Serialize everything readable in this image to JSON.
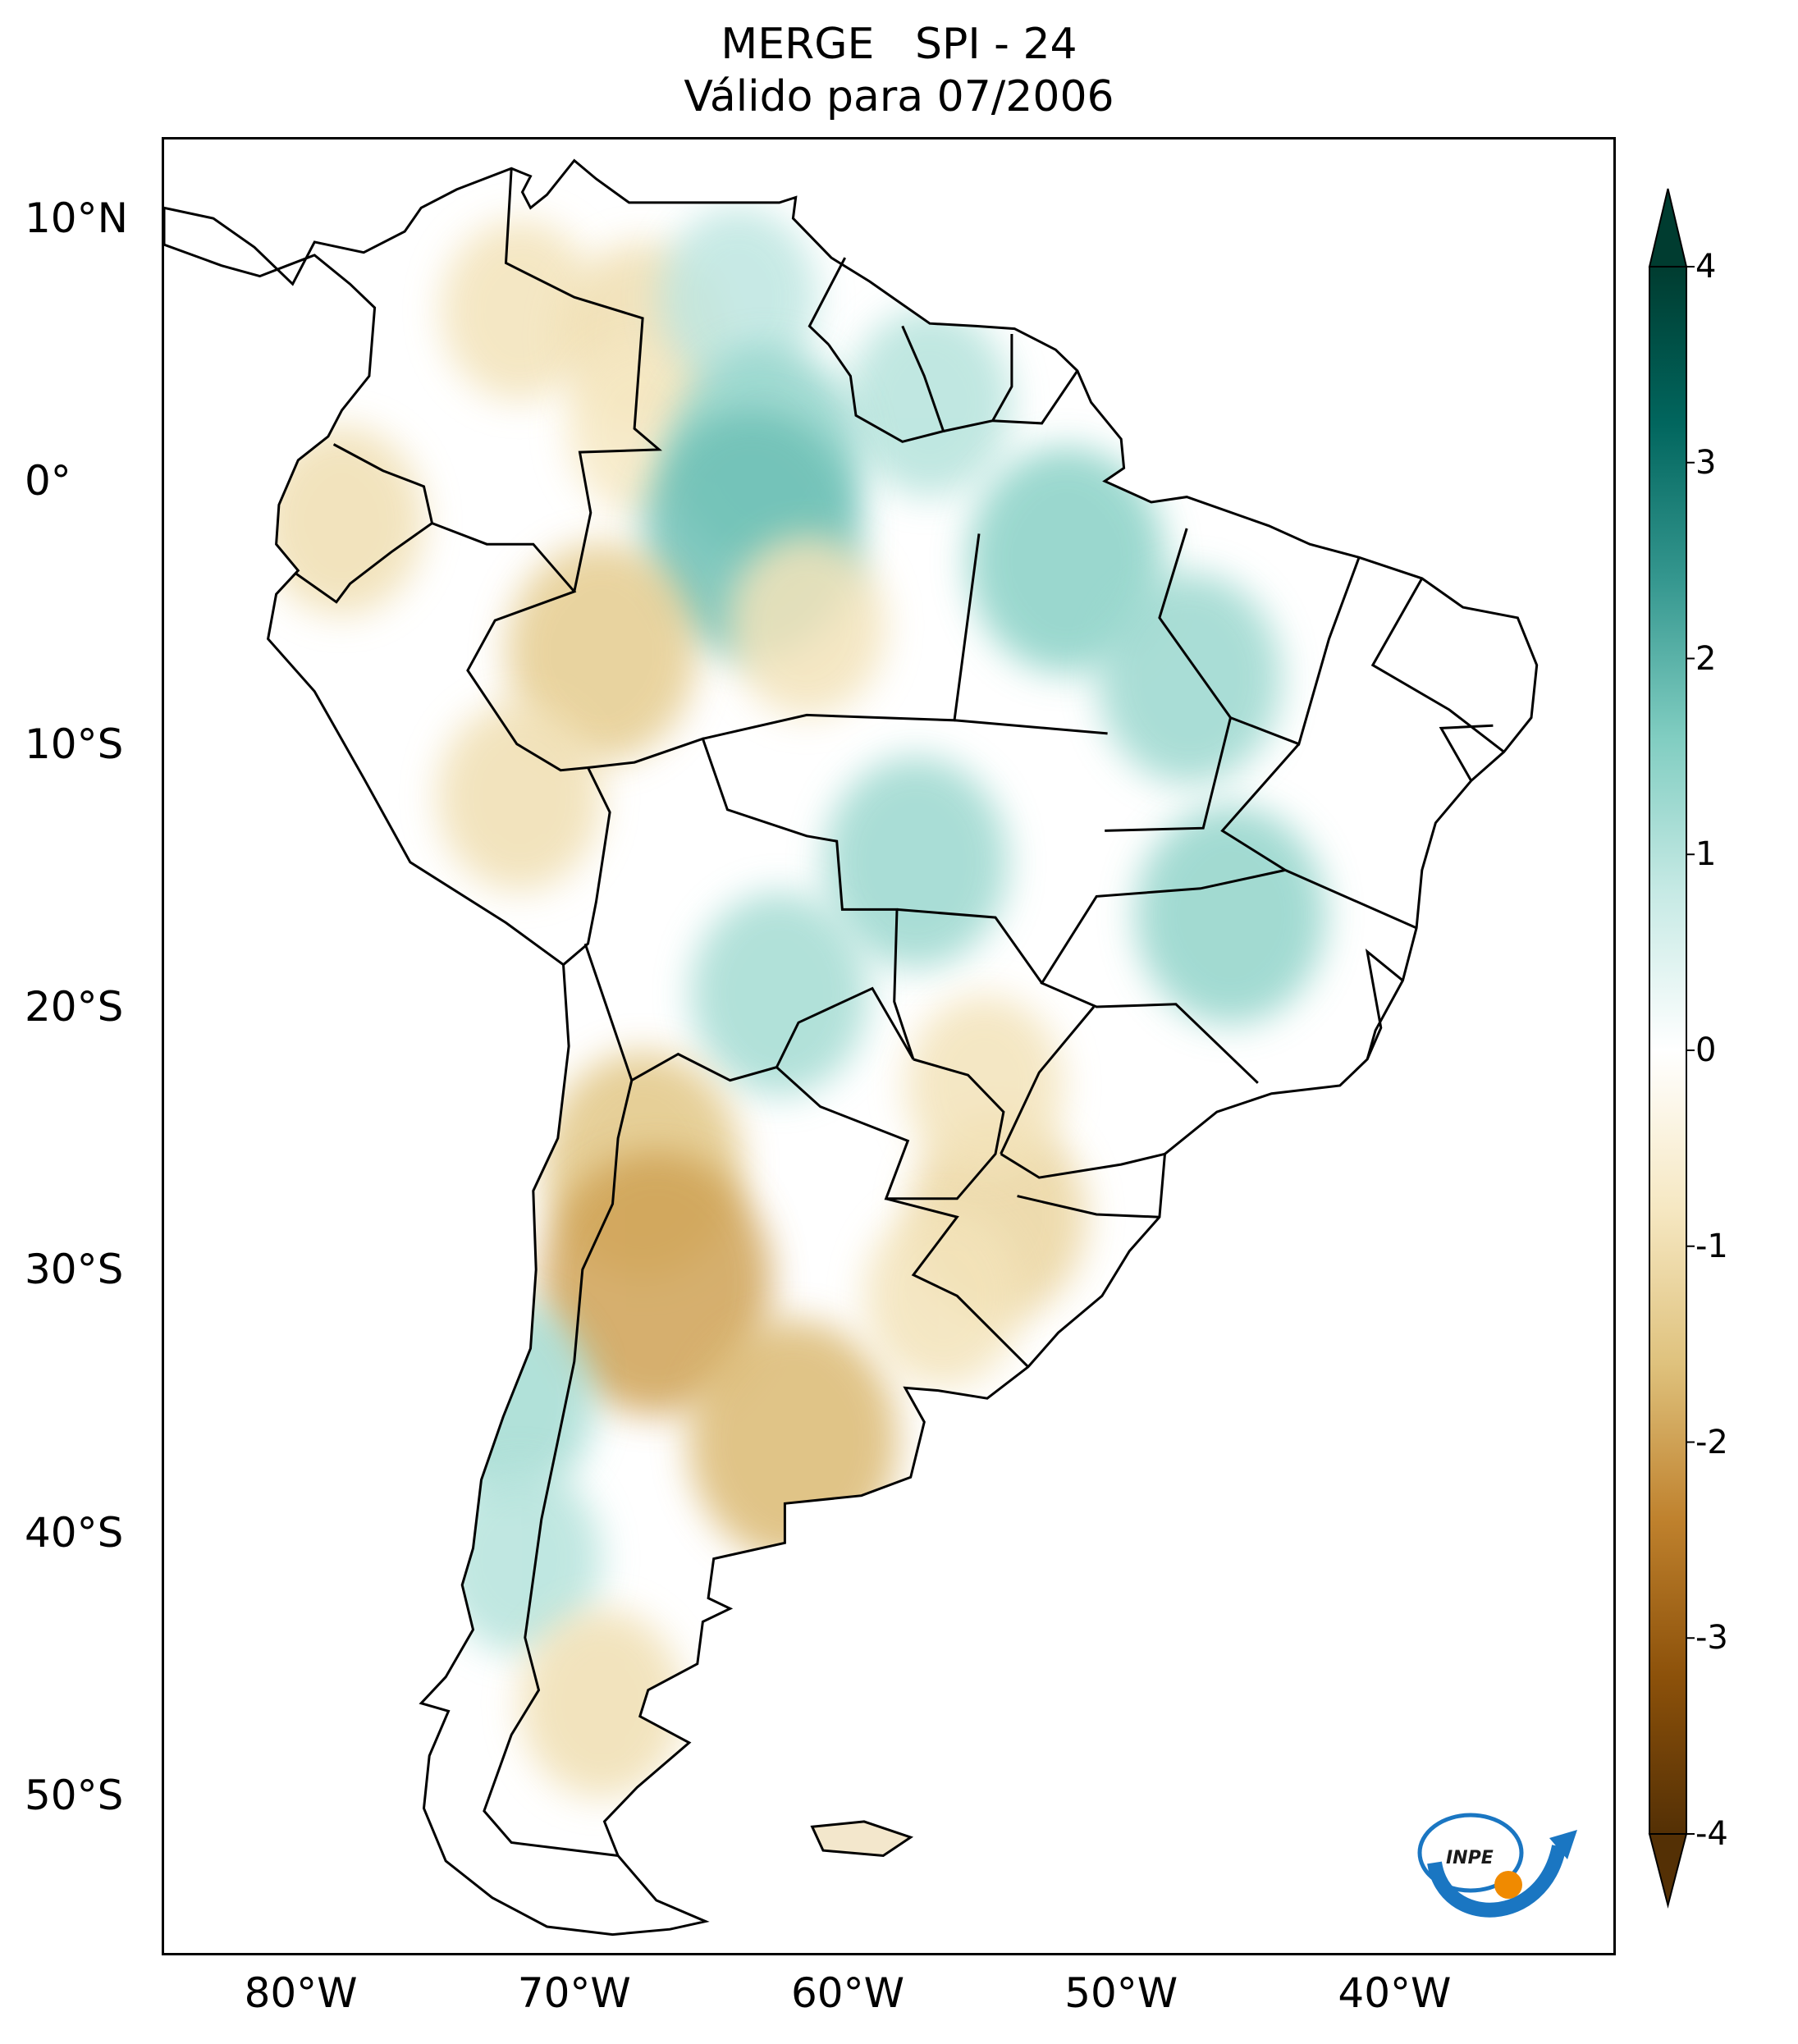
{
  "title": {
    "line1": "MERGE   SPI - 24",
    "line2": "Válido para 07/2006"
  },
  "map": {
    "extent": {
      "lon_min": -85,
      "lon_max": -32,
      "lat_min": -56,
      "lat_max": 13
    },
    "lat_ticks": [
      {
        "value": 10,
        "label": "10°N"
      },
      {
        "value": 0,
        "label": "0°"
      },
      {
        "value": -10,
        "label": "10°S"
      },
      {
        "value": -20,
        "label": "20°S"
      },
      {
        "value": -30,
        "label": "30°S"
      },
      {
        "value": -40,
        "label": "40°S"
      },
      {
        "value": -50,
        "label": "50°S"
      }
    ],
    "lon_ticks": [
      {
        "value": -80,
        "label": "80°W"
      },
      {
        "value": -70,
        "label": "70°W"
      },
      {
        "value": -60,
        "label": "60°W"
      },
      {
        "value": -50,
        "label": "50°W"
      },
      {
        "value": -40,
        "label": "40°W"
      }
    ],
    "spi_anomalies": [
      {
        "lat": 6.5,
        "lon": -72.0,
        "spi": -0.9
      },
      {
        "lat": 5.5,
        "lon": -67.5,
        "spi": -1.0
      },
      {
        "lat": 2.0,
        "lon": -67.5,
        "spi": -0.8
      },
      {
        "lat": 7.0,
        "lon": -64.0,
        "spi": 0.9
      },
      {
        "lat": 3.0,
        "lon": -57.0,
        "spi": 1.0
      },
      {
        "lat": 1.0,
        "lon": -63.0,
        "spi": 1.4
      },
      {
        "lat": -2.0,
        "lon": -63.5,
        "spi": 1.8
      },
      {
        "lat": -3.0,
        "lon": -52.0,
        "spi": 1.5
      },
      {
        "lat": -1.5,
        "lon": -78.5,
        "spi": -1.0
      },
      {
        "lat": -6.5,
        "lon": -69.0,
        "spi": -1.4
      },
      {
        "lat": -5.5,
        "lon": -61.5,
        "spi": -0.9
      },
      {
        "lat": -7.5,
        "lon": -47.5,
        "spi": 1.3
      },
      {
        "lat": -14.5,
        "lon": -57.5,
        "spi": 1.3
      },
      {
        "lat": -16.5,
        "lon": -46.0,
        "spi": 1.4
      },
      {
        "lat": -12.0,
        "lon": -72.0,
        "spi": -1.0
      },
      {
        "lat": -19.5,
        "lon": -62.5,
        "spi": 1.2
      },
      {
        "lat": -26.0,
        "lon": -67.5,
        "spi": -1.5
      },
      {
        "lat": -30.5,
        "lon": -67.0,
        "spi": -2.0
      },
      {
        "lat": -36.5,
        "lon": -62.0,
        "spi": -1.7
      },
      {
        "lat": -28.0,
        "lon": -54.5,
        "spi": -1.2
      },
      {
        "lat": -35.0,
        "lon": -72.5,
        "spi": 1.2
      },
      {
        "lat": -41.0,
        "lon": -72.0,
        "spi": 1.0
      },
      {
        "lat": -46.5,
        "lon": -69.0,
        "spi": -1.0
      },
      {
        "lat": -23.0,
        "lon": -55.0,
        "spi": -0.9
      },
      {
        "lat": -31.0,
        "lon": -56.5,
        "spi": -0.9
      }
    ]
  },
  "colorbar": {
    "min": -4,
    "max": 4,
    "ticks": [
      {
        "value": 4,
        "label": "4"
      },
      {
        "value": 3,
        "label": "3"
      },
      {
        "value": 2,
        "label": "2"
      },
      {
        "value": 1,
        "label": "1"
      },
      {
        "value": 0,
        "label": "0"
      },
      {
        "value": -1,
        "label": "-1"
      },
      {
        "value": -2,
        "label": "-2"
      },
      {
        "value": -3,
        "label": "-3"
      },
      {
        "value": -4,
        "label": "-4"
      }
    ],
    "colors": [
      "#543005",
      "#8c510a",
      "#bf812d",
      "#dfc27d",
      "#f6e8c3",
      "#ffffff",
      "#c7eae5",
      "#80cdc1",
      "#35978f",
      "#01665e",
      "#003c30"
    ]
  },
  "logo": {
    "icon": "inpe-logo",
    "text": "INPE"
  }
}
